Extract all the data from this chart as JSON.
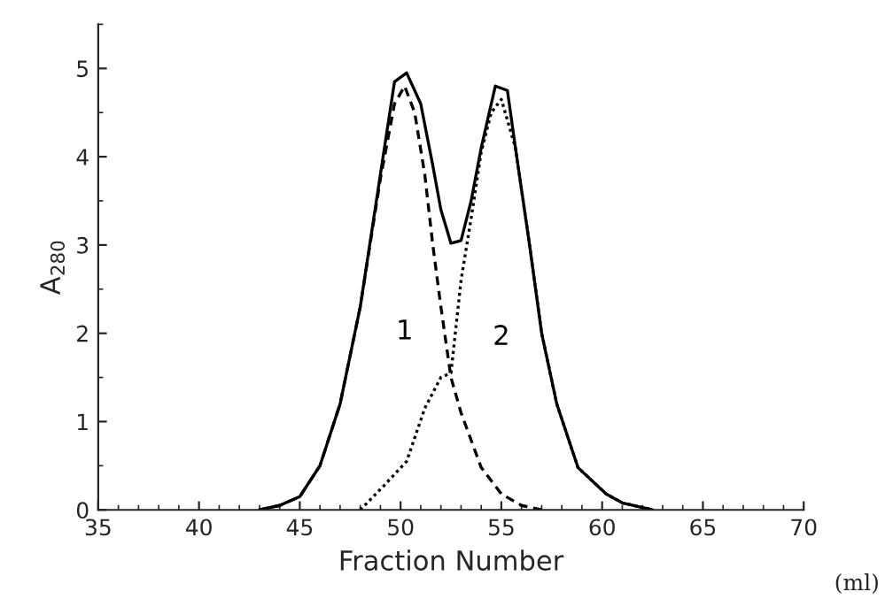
{
  "chart_data": {
    "type": "line",
    "xlabel": "Fraction Number",
    "ylabel": "A$_{280}$",
    "annotations": [
      "(ml)"
    ],
    "xlim": [
      35,
      70
    ],
    "xticks": [
      35,
      40,
      45,
      50,
      55,
      60,
      65,
      70
    ],
    "ylim": [
      0,
      5.5
    ],
    "yticks": [
      0,
      1,
      2,
      3,
      4,
      5
    ],
    "grid": false,
    "legend": false,
    "marker": "none",
    "series": [
      {
        "color": "#000000",
        "line_style": "solid",
        "x": [
          43,
          44,
          45,
          46,
          47,
          48,
          49,
          49.7,
          50.3,
          51,
          51.6,
          52,
          52.5,
          53,
          53.5,
          54,
          54.7,
          55.3,
          55.7,
          56.4,
          57,
          57.75,
          58.8,
          60.2,
          61,
          62.5
        ],
        "values": [
          0,
          0.05,
          0.15,
          0.5,
          1.2,
          2.3,
          3.8,
          4.85,
          4.95,
          4.6,
          3.9,
          3.4,
          3.02,
          3.05,
          3.5,
          4.1,
          4.8,
          4.75,
          4.1,
          3.0,
          2.0,
          1.2,
          0.48,
          0.18,
          0.08,
          0
        ]
      },
      {
        "name": "1",
        "color": "#000000",
        "line_style": "dashed",
        "x": [
          43,
          44,
          45,
          46,
          47,
          48,
          49,
          49.7,
          50.2,
          50.7,
          51.2,
          51.6,
          52,
          52.5,
          53,
          54,
          55,
          56,
          57
        ],
        "values": [
          0,
          0.05,
          0.15,
          0.5,
          1.2,
          2.3,
          3.75,
          4.6,
          4.8,
          4.5,
          3.8,
          3.0,
          2.3,
          1.5,
          1.1,
          0.48,
          0.18,
          0.05,
          0
        ]
      },
      {
        "name": "2",
        "color": "#000000",
        "line_style": "dotted",
        "x": [
          48,
          49.2,
          50.3,
          51.2,
          52,
          52.5,
          53,
          53.5,
          54,
          54.5,
          55,
          55.7,
          56.4,
          57,
          57.75,
          58.8,
          60.2,
          61,
          62.5
        ],
        "values": [
          0,
          0.28,
          0.55,
          1.15,
          1.5,
          1.55,
          2.6,
          3.3,
          4.05,
          4.5,
          4.65,
          4.1,
          3.0,
          2.0,
          1.2,
          0.48,
          0.18,
          0.08,
          0
        ]
      }
    ]
  }
}
